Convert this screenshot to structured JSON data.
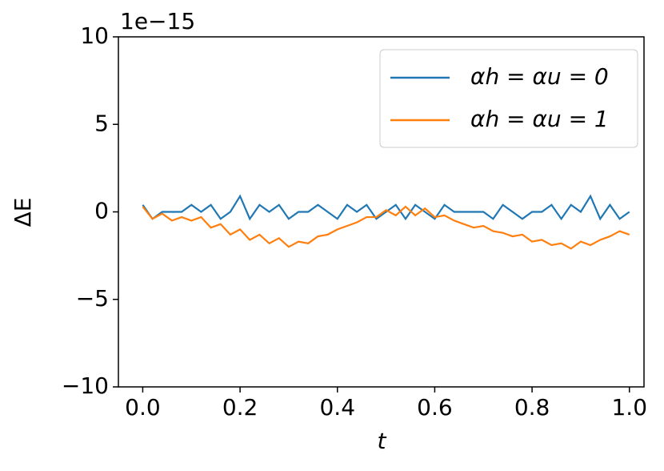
{
  "chart_data": {
    "type": "line",
    "y_offset_label": "1e−15",
    "xlabel": "t",
    "ylabel": "ΔE",
    "x": [
      0,
      0.02,
      0.04,
      0.06,
      0.08,
      0.1,
      0.12,
      0.14,
      0.16,
      0.18,
      0.2,
      0.22,
      0.24,
      0.26,
      0.28,
      0.3,
      0.32,
      0.34,
      0.36,
      0.38,
      0.4,
      0.42,
      0.44,
      0.46,
      0.48,
      0.5,
      0.52,
      0.54,
      0.56,
      0.58,
      0.6,
      0.62,
      0.64,
      0.66,
      0.68,
      0.7,
      0.72,
      0.74,
      0.76,
      0.78,
      0.8,
      0.82,
      0.84,
      0.86,
      0.88,
      0.9,
      0.92,
      0.94,
      0.96,
      0.98,
      1.0
    ],
    "series": [
      {
        "name": "αh = αu = 0",
        "color": "#1f77b4",
        "values": [
          0.4,
          -0.4,
          0,
          0,
          0,
          0.4,
          0,
          0.4,
          -0.4,
          0,
          0.9,
          -0.4,
          0.4,
          0,
          0.4,
          -0.4,
          0,
          0,
          0.4,
          0,
          -0.4,
          0.4,
          0,
          0.4,
          -0.4,
          0,
          0.4,
          -0.4,
          0.4,
          0,
          -0.4,
          0.4,
          0,
          0,
          0,
          0,
          -0.4,
          0.4,
          0,
          -0.4,
          0,
          0,
          0.4,
          -0.4,
          0.4,
          0,
          0.9,
          -0.4,
          0.4,
          -0.4,
          0
        ]
      },
      {
        "name": "αh = αu = 1",
        "color": "#ff7f0e",
        "values": [
          0.3,
          -0.4,
          -0.1,
          -0.5,
          -0.3,
          -0.5,
          -0.3,
          -0.9,
          -0.7,
          -1.3,
          -1.0,
          -1.6,
          -1.3,
          -1.8,
          -1.5,
          -2.0,
          -1.7,
          -1.8,
          -1.4,
          -1.3,
          -1.0,
          -0.8,
          -0.6,
          -0.3,
          -0.3,
          0.1,
          -0.2,
          0.3,
          -0.2,
          0.2,
          -0.3,
          -0.2,
          -0.5,
          -0.7,
          -0.9,
          -0.8,
          -1.1,
          -1.2,
          -1.4,
          -1.3,
          -1.7,
          -1.6,
          -1.9,
          -1.8,
          -2.1,
          -1.7,
          -1.9,
          -1.6,
          -1.4,
          -1.1,
          -1.3
        ]
      }
    ],
    "xlim": [
      -0.05,
      1.03
    ],
    "ylim": [
      -10,
      10
    ],
    "xticks": [
      {
        "value": 0,
        "label": "0.0"
      },
      0.2,
      0.4,
      0.6,
      0.8,
      {
        "value": 1,
        "label": "1.0"
      }
    ],
    "yticks": [
      {
        "value": -10,
        "label": "−10"
      },
      {
        "value": -5,
        "label": "−5"
      },
      0,
      5,
      10
    ],
    "legend": "upper right"
  }
}
